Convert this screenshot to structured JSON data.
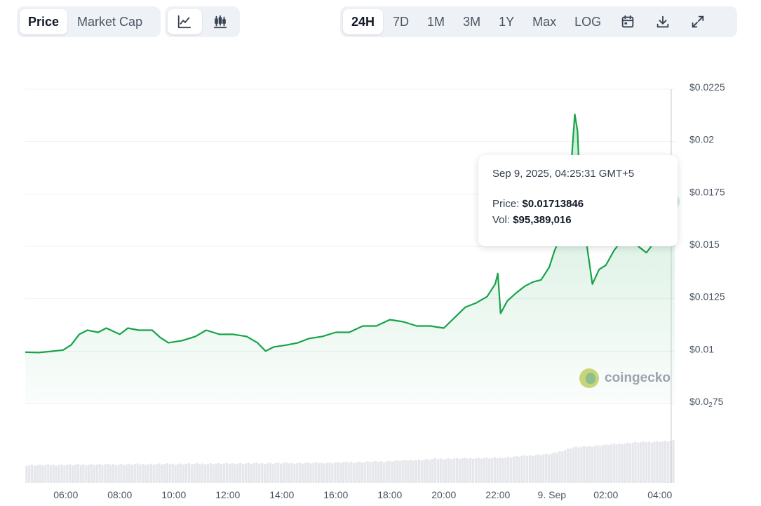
{
  "toolbar": {
    "metric_tabs": [
      {
        "label": "Price",
        "active": true
      },
      {
        "label": "Market Cap",
        "active": false
      }
    ],
    "chart_type_buttons": [
      {
        "icon": "line-chart-icon",
        "active": true
      },
      {
        "icon": "candlestick-chart-icon",
        "active": false
      }
    ],
    "range_tabs": [
      {
        "label": "24H",
        "active": true
      },
      {
        "label": "7D",
        "active": false
      },
      {
        "label": "1M",
        "active": false
      },
      {
        "label": "3M",
        "active": false
      },
      {
        "label": "1Y",
        "active": false
      },
      {
        "label": "Max",
        "active": false
      },
      {
        "label": "LOG",
        "active": false
      }
    ],
    "action_icons": [
      "calendar-icon",
      "download-icon",
      "fullscreen-icon"
    ]
  },
  "tooltip": {
    "date": "Sep 9, 2025, 04:25:31 GMT+5",
    "price_label": "Price:",
    "price_value": "$0.01713846",
    "vol_label": "Vol:",
    "vol_value": "$95,389,016"
  },
  "watermark": "coingecko",
  "colors": {
    "line": "#16a34a",
    "area": "#16a34a",
    "volume": "#e5e7eb",
    "grid": "#eef0f3"
  },
  "chart_data": {
    "type": "area",
    "x_tick_labels": [
      "06:00",
      "08:00",
      "10:00",
      "12:00",
      "14:00",
      "16:00",
      "18:00",
      "20:00",
      "22:00",
      "9. Sep",
      "02:00",
      "04:00"
    ],
    "x_ticks_hours": [
      6,
      8,
      10,
      12,
      14,
      16,
      18,
      20,
      22,
      24,
      26,
      28
    ],
    "x_range_hours": [
      4.5,
      28.55
    ],
    "y_ticks": [
      {
        "value": 0.0075,
        "label_main": "$0.0",
        "label_sub": "2",
        "label_tail": "75"
      },
      {
        "value": 0.01,
        "label_main": "$0.01",
        "label_sub": "",
        "label_tail": ""
      },
      {
        "value": 0.0125,
        "label_main": "$0.0125",
        "label_sub": "",
        "label_tail": ""
      },
      {
        "value": 0.015,
        "label_main": "$0.015",
        "label_sub": "",
        "label_tail": ""
      },
      {
        "value": 0.0175,
        "label_main": "$0.0175",
        "label_sub": "",
        "label_tail": ""
      },
      {
        "value": 0.02,
        "label_main": "$0.02",
        "label_sub": "",
        "label_tail": ""
      },
      {
        "value": 0.0225,
        "label_main": "$0.0225",
        "label_sub": "",
        "label_tail": ""
      }
    ],
    "ylim": [
      0.0075,
      0.0225
    ],
    "grid": true,
    "hover_point": {
      "hour": 28.42,
      "value": 0.01713846
    },
    "series": [
      {
        "type": "line",
        "points": [
          [
            4.5,
            0.00995
          ],
          [
            5.0,
            0.00993
          ],
          [
            5.4,
            0.00998
          ],
          [
            5.9,
            0.01005
          ],
          [
            6.2,
            0.0103
          ],
          [
            6.5,
            0.0108
          ],
          [
            6.8,
            0.011
          ],
          [
            7.2,
            0.0109
          ],
          [
            7.5,
            0.0111
          ],
          [
            8.0,
            0.0108
          ],
          [
            8.3,
            0.0111
          ],
          [
            8.7,
            0.011
          ],
          [
            9.2,
            0.011
          ],
          [
            9.5,
            0.01065
          ],
          [
            9.8,
            0.0104
          ],
          [
            10.3,
            0.0105
          ],
          [
            10.8,
            0.0107
          ],
          [
            11.2,
            0.011
          ],
          [
            11.7,
            0.0108
          ],
          [
            12.2,
            0.0108
          ],
          [
            12.7,
            0.0107
          ],
          [
            13.1,
            0.0104
          ],
          [
            13.4,
            0.01
          ],
          [
            13.7,
            0.0102
          ],
          [
            14.2,
            0.0103
          ],
          [
            14.6,
            0.0104
          ],
          [
            15.0,
            0.0106
          ],
          [
            15.5,
            0.0107
          ],
          [
            16.0,
            0.0109
          ],
          [
            16.5,
            0.0109
          ],
          [
            17.0,
            0.0112
          ],
          [
            17.5,
            0.0112
          ],
          [
            18.0,
            0.0115
          ],
          [
            18.5,
            0.0114
          ],
          [
            19.0,
            0.0112
          ],
          [
            19.5,
            0.0112
          ],
          [
            20.0,
            0.0111
          ],
          [
            20.4,
            0.0116
          ],
          [
            20.8,
            0.0121
          ],
          [
            21.2,
            0.0123
          ],
          [
            21.6,
            0.0126
          ],
          [
            21.9,
            0.0132
          ],
          [
            22.0,
            0.0137
          ],
          [
            22.1,
            0.0118
          ],
          [
            22.35,
            0.0124
          ],
          [
            22.7,
            0.0128
          ],
          [
            23.0,
            0.0131
          ],
          [
            23.3,
            0.0133
          ],
          [
            23.6,
            0.0134
          ],
          [
            23.9,
            0.014
          ],
          [
            24.1,
            0.0148
          ],
          [
            24.4,
            0.0157
          ],
          [
            24.6,
            0.0162
          ],
          [
            24.75,
            0.0195
          ],
          [
            24.85,
            0.0213
          ],
          [
            24.95,
            0.0205
          ],
          [
            25.05,
            0.0175
          ],
          [
            25.3,
            0.015
          ],
          [
            25.5,
            0.0132
          ],
          [
            25.75,
            0.0139
          ],
          [
            26.0,
            0.0141
          ],
          [
            26.3,
            0.0148
          ],
          [
            26.6,
            0.0153
          ],
          [
            26.9,
            0.0155
          ],
          [
            27.2,
            0.015
          ],
          [
            27.5,
            0.0147
          ],
          [
            27.8,
            0.0152
          ],
          [
            28.1,
            0.0156
          ],
          [
            28.3,
            0.0161
          ],
          [
            28.55,
            0.0175
          ]
        ]
      },
      {
        "type": "volume",
        "points": [
          [
            4.5,
            0.22
          ],
          [
            8.0,
            0.23
          ],
          [
            12.0,
            0.24
          ],
          [
            16.0,
            0.25
          ],
          [
            18.0,
            0.27
          ],
          [
            20.0,
            0.3
          ],
          [
            22.0,
            0.31
          ],
          [
            24.0,
            0.36
          ],
          [
            24.8,
            0.44
          ],
          [
            26.0,
            0.47
          ],
          [
            27.0,
            0.5
          ],
          [
            28.55,
            0.52
          ]
        ]
      }
    ]
  }
}
